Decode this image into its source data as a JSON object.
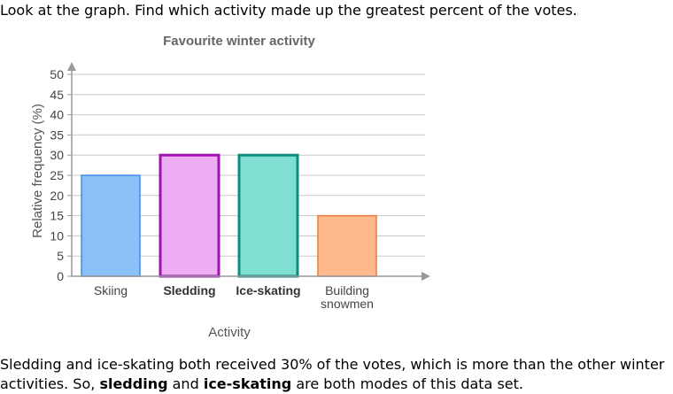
{
  "question": "Look at the graph. Find which activity made up the greatest percent of the votes.",
  "chart_data": {
    "type": "bar",
    "title": "Favourite winter activity",
    "xlabel": "Activity",
    "ylabel": "Relative frequency (%)",
    "ylim": [
      0,
      50
    ],
    "yticks": [
      "0",
      "5",
      "10",
      "15",
      "20",
      "25",
      "30",
      "35",
      "40",
      "45",
      "50"
    ],
    "grid": true,
    "categories": [
      "Skiing",
      "Sledding",
      "Ice-skating",
      "Building snowmen"
    ],
    "category_lines": [
      [
        "Skiing"
      ],
      [
        "Sledding"
      ],
      [
        "Ice-skating"
      ],
      [
        "Building",
        "snowmen"
      ]
    ],
    "values": [
      25,
      30,
      30,
      15
    ],
    "bold_categories": [
      false,
      true,
      true,
      false
    ],
    "fills": [
      "#8cc0f8",
      "#eeaef4",
      "#7fdfd2",
      "#ffb98c"
    ],
    "strokes": [
      "#3d8ee8",
      "#a012b0",
      "#0e8c80",
      "#f07b3a"
    ],
    "highlighted": [
      false,
      true,
      true,
      false
    ]
  },
  "answer": {
    "part1": "Sledding and ice-skating both received 30% of the votes, which is more than the other winter activities. So,",
    "mode1": "sledding",
    "and": "and",
    "mode2": "ice-skating",
    "part2": "are both modes of this data set."
  }
}
